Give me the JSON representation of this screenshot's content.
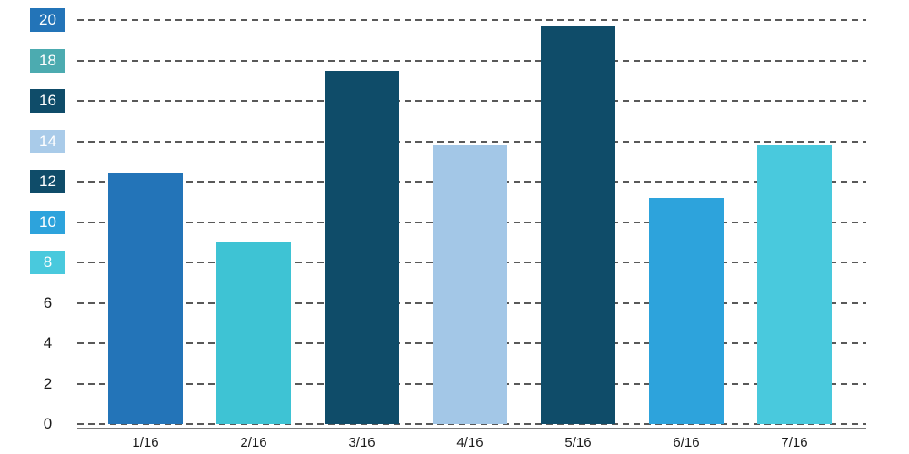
{
  "chart_data": {
    "type": "bar",
    "title": "",
    "xlabel": "",
    "ylabel": "",
    "categories": [
      "1/16",
      "2/16",
      "3/16",
      "4/16",
      "5/16",
      "6/16",
      "7/16"
    ],
    "values": [
      12.4,
      9,
      17.5,
      13.8,
      19.7,
      11.2,
      13.8
    ],
    "bar_colors": [
      "#2374b8",
      "#3ec3d4",
      "#0f4c69",
      "#a3c7e7",
      "#0f4c69",
      "#2da3dc",
      "#49c9dd"
    ],
    "ylim": [
      0,
      20
    ],
    "ytick_step": 2,
    "grid": "horizontal-dashed",
    "legend": "none",
    "yticks": [
      {
        "label": "20",
        "value": 20,
        "chip_bg": "#2374b8",
        "chip_fg": "#ffffff"
      },
      {
        "label": "18",
        "value": 18,
        "chip_bg": "#4cabb0",
        "chip_fg": "#ffffff"
      },
      {
        "label": "16",
        "value": 16,
        "chip_bg": "#0f4c69",
        "chip_fg": "#ffffff"
      },
      {
        "label": "14",
        "value": 14,
        "chip_bg": "#a9cbe9",
        "chip_fg": "#ffffff"
      },
      {
        "label": "12",
        "value": 12,
        "chip_bg": "#0f4c69",
        "chip_fg": "#ffffff"
      },
      {
        "label": "10",
        "value": 10,
        "chip_bg": "#2da3dc",
        "chip_fg": "#ffffff"
      },
      {
        "label": "8",
        "value": 8,
        "chip_bg": "#49c9dd",
        "chip_fg": "#ffffff"
      },
      {
        "label": "6",
        "value": 6,
        "chip_bg": null,
        "chip_fg": "#1a1a1a"
      },
      {
        "label": "4",
        "value": 4,
        "chip_bg": null,
        "chip_fg": "#1a1a1a"
      },
      {
        "label": "2",
        "value": 2,
        "chip_bg": null,
        "chip_fg": "#1a1a1a"
      },
      {
        "label": "0",
        "value": 0,
        "chip_bg": null,
        "chip_fg": "#1a1a1a"
      }
    ],
    "colors": {
      "background": "#ffffff",
      "gridline": "#595959",
      "axis_line": "#7a7a7a",
      "tick_text": "#1a1a1a"
    }
  }
}
